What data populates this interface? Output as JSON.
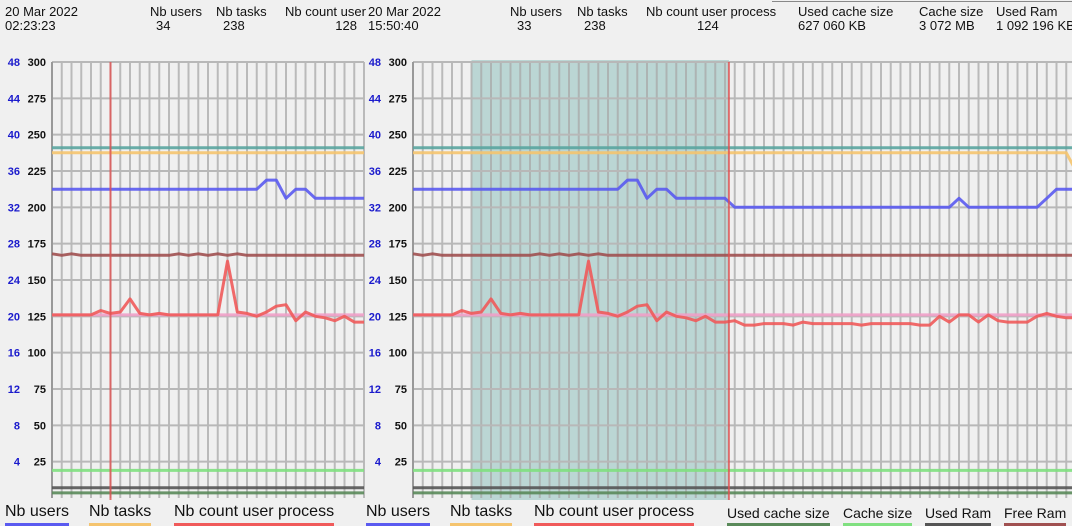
{
  "left_panel": {
    "date": "20 Mar 2022",
    "time": "02:23:23",
    "stats": [
      {
        "label": "Nb users",
        "value": "34"
      },
      {
        "label": "Nb tasks",
        "value": "238"
      },
      {
        "label": "Nb count user",
        "value": "128"
      }
    ],
    "legend": [
      {
        "label": "Nb users",
        "color": "#5a5af0"
      },
      {
        "label": "Nb tasks",
        "color": "#f5c46e"
      },
      {
        "label": "Nb count user process",
        "color": "#f05a5a"
      }
    ]
  },
  "right_panel": {
    "date": "20 Mar 2022",
    "time": "15:50:40",
    "stats": [
      {
        "label": "Nb users",
        "value": "33"
      },
      {
        "label": "Nb tasks",
        "value": "238"
      },
      {
        "label": "Nb count user process",
        "value": "124"
      },
      {
        "label": "Used cache size",
        "value": "627 060 KB"
      },
      {
        "label": "Cache size",
        "value": "3 072 MB"
      },
      {
        "label": "Used Ram",
        "value": "1 092 196 KB"
      }
    ],
    "legend": [
      {
        "label": "Nb users",
        "color": "#5a5af0"
      },
      {
        "label": "Nb tasks",
        "color": "#f5c46e"
      },
      {
        "label": "Nb count user process",
        "color": "#f05a5a"
      },
      {
        "label": "Used cache size",
        "color": "#5a8a5a"
      },
      {
        "label": "Cache size",
        "color": "#80e080"
      },
      {
        "label": "Used Ram",
        "color": "#555555"
      },
      {
        "label": "Free Ram",
        "color": "#a05050"
      }
    ]
  },
  "axis": {
    "left_ticks": [
      "48",
      "44",
      "40",
      "36",
      "32",
      "28",
      "24",
      "20",
      "16",
      "12",
      "8",
      "4"
    ],
    "right_ticks": [
      "300",
      "275",
      "250",
      "225",
      "200",
      "175",
      "150",
      "125",
      "100",
      "75",
      "50",
      "25"
    ],
    "ymax": 300
  },
  "chart_data": [
    {
      "type": "line",
      "name": "left-chart",
      "ylim": [
        0,
        300
      ],
      "cursor_index": 6,
      "series": [
        {
          "name": "teal",
          "color": "#5aa5a0",
          "const": 241
        },
        {
          "name": "Nb tasks",
          "color": "#f5c46e",
          "const": 237.5
        },
        {
          "name": "Nb users",
          "color": "#5a5af0",
          "values": [
            212.5,
            212.5,
            212.5,
            212.5,
            212.5,
            212.5,
            212.5,
            212.5,
            212.5,
            212.5,
            212.5,
            212.5,
            212.5,
            212.5,
            212.5,
            212.5,
            212.5,
            212.5,
            212.5,
            212.5,
            212.5,
            212.5,
            218.75,
            218.75,
            206.25,
            212.5,
            212.5,
            206.25,
            206.25,
            206.25,
            206.25,
            206.25,
            206.25
          ]
        },
        {
          "name": "Free Ram",
          "color": "#a05050",
          "values": [
            168,
            167,
            168,
            167,
            167,
            167,
            167,
            167,
            167,
            167,
            167,
            167,
            167,
            168,
            167,
            168,
            167,
            168,
            167,
            168,
            167,
            167,
            167,
            167,
            167,
            167,
            167,
            167,
            167,
            167,
            167,
            167,
            167
          ]
        },
        {
          "name": "pink",
          "color": "#f0a0c8",
          "const": 126
        },
        {
          "name": "Nb count user process",
          "color": "#f05a5a",
          "values": [
            126,
            126,
            126,
            126,
            126,
            129,
            127,
            128,
            137,
            127,
            126,
            127,
            126,
            126,
            126,
            126,
            126,
            126,
            163,
            128,
            127,
            125,
            128,
            132,
            133,
            122,
            128,
            125,
            124,
            122,
            125,
            121,
            121
          ]
        },
        {
          "name": "Cache size",
          "color": "#80e080",
          "const": 19
        },
        {
          "name": "Used Ram",
          "color": "#555555",
          "const": 7
        },
        {
          "name": "Used cache size",
          "color": "#5a8a5a",
          "const": 3.5
        }
      ]
    },
    {
      "type": "line",
      "name": "right-chart",
      "ylim": [
        0,
        300
      ],
      "cursor_index": 32.4,
      "selection": [
        6,
        32.4
      ],
      "series": [
        {
          "name": "teal",
          "color": "#5aa5a0",
          "const": 241
        },
        {
          "name": "Nb tasks",
          "color": "#f5c46e",
          "values": [
            237.5,
            237.5,
            237.5,
            237.5,
            237.5,
            237.5,
            237.5,
            237.5,
            237.5,
            237.5,
            237.5,
            237.5,
            237.5,
            237.5,
            237.5,
            237.5,
            237.5,
            237.5,
            237.5,
            237.5,
            237.5,
            237.5,
            237.5,
            237.5,
            237.5,
            237.5,
            237.5,
            237.5,
            237.5,
            237.5,
            237.5,
            237.5,
            237.5,
            237.5,
            237.5,
            237.5,
            237.5,
            237.5,
            237.5,
            237.5,
            237.5,
            237.5,
            237.5,
            237.5,
            237.5,
            237.5,
            237.5,
            237.5,
            237.5,
            237.5,
            237.5,
            237.5,
            237.5,
            237.5,
            237.5,
            237.5,
            237.5,
            237.5,
            237.5,
            237.5,
            237.5,
            237.5,
            237.5,
            237.5,
            237.5,
            237.5,
            237.5,
            237.5,
            225
          ]
        },
        {
          "name": "Nb users",
          "color": "#5a5af0",
          "values": [
            212.5,
            212.5,
            212.5,
            212.5,
            212.5,
            212.5,
            212.5,
            212.5,
            212.5,
            212.5,
            212.5,
            212.5,
            212.5,
            212.5,
            212.5,
            212.5,
            212.5,
            212.5,
            212.5,
            212.5,
            212.5,
            212.5,
            218.75,
            218.75,
            206.25,
            212.5,
            212.5,
            206.25,
            206.25,
            206.25,
            206.25,
            206.25,
            206.25,
            200,
            200,
            200,
            200,
            200,
            200,
            200,
            200,
            200,
            200,
            200,
            200,
            200,
            200,
            200,
            200,
            200,
            200,
            200,
            200,
            200,
            200,
            200,
            206.25,
            200,
            200,
            200,
            200,
            200,
            200,
            200,
            200,
            206.25,
            212.5,
            212.5,
            212.5
          ]
        },
        {
          "name": "Free Ram",
          "color": "#a05050",
          "values": [
            168,
            167,
            168,
            167,
            167,
            167,
            167,
            167,
            167,
            167,
            167,
            167,
            167,
            168,
            167,
            168,
            167,
            168,
            167,
            168,
            167,
            167,
            167,
            167,
            167,
            167,
            167,
            167,
            167,
            167,
            167,
            167,
            167,
            167,
            167,
            167,
            167,
            167,
            167,
            167,
            167,
            167,
            167,
            167,
            167,
            167,
            167,
            167,
            167,
            167,
            167,
            167,
            167,
            167,
            167,
            167,
            167,
            167,
            167,
            167,
            167,
            167,
            167,
            167,
            167,
            167,
            167,
            167,
            167
          ]
        },
        {
          "name": "pink",
          "color": "#f0a0c8",
          "const": 126
        },
        {
          "name": "Nb count user process",
          "color": "#f05a5a",
          "values": [
            126,
            126,
            126,
            126,
            126,
            129,
            127,
            128,
            137,
            127,
            126,
            127,
            126,
            126,
            126,
            126,
            126,
            126,
            163,
            128,
            127,
            125,
            128,
            132,
            133,
            122,
            128,
            125,
            124,
            122,
            125,
            121,
            121,
            122,
            119,
            119,
            120,
            120,
            120,
            119,
            121,
            120,
            120,
            120,
            120,
            120,
            119,
            120,
            120,
            120,
            120,
            120,
            119,
            119,
            125,
            121,
            126,
            126,
            121,
            126,
            122,
            121,
            121,
            121,
            125,
            127,
            125,
            124,
            124
          ]
        },
        {
          "name": "Cache size",
          "color": "#80e080",
          "const": 19
        },
        {
          "name": "Used Ram",
          "color": "#555555",
          "const": 7
        },
        {
          "name": "Used cache size",
          "color": "#5a8a5a",
          "const": 3.5
        }
      ]
    }
  ]
}
